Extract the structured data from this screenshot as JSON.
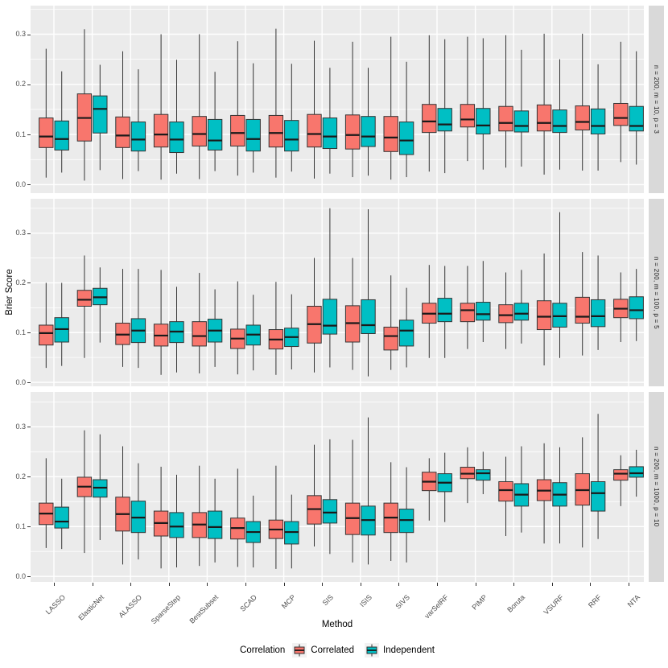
{
  "figure": {
    "background": "#FFFFFF",
    "panel_bg": "#EBEBEB",
    "strip_bg": "#D9D9D9",
    "grid_color": "#FFFFFF",
    "box_stroke": "#333333",
    "axis_text_color": "#4D4D4D"
  },
  "axes": {
    "x_title": "Method",
    "y_title": "Brier Score",
    "y_tick_labels": [
      "0.0",
      "0.1",
      "0.2",
      "0.3"
    ],
    "y_tick_values": [
      0,
      0.1,
      0.2,
      0.3
    ],
    "y_minor_values": [
      0.05,
      0.15,
      0.25,
      0.35
    ]
  },
  "legend": {
    "title": "Correlation",
    "entries": [
      {
        "label": "Correlated",
        "color": "#F8766D"
      },
      {
        "label": "Independent",
        "color": "#00BFC4"
      }
    ]
  },
  "chart_data": {
    "type": "boxplot",
    "layout_hint": "three vertically stacked facets, grouped dodged boxplots, gray panels with white gridlines, facet strips on right",
    "categories": [
      "LASSO",
      "ElasticNet",
      "ALASSO",
      "SparseStep",
      "BestSubset",
      "SCAD",
      "MCP",
      "SIS",
      "ISIS",
      "SIVS",
      "varSelRF",
      "PIMP",
      "Boruta",
      "VSURF",
      "RRF",
      "NTA"
    ],
    "series_names": [
      "Correlated",
      "Independent"
    ],
    "series_colors": {
      "Correlated": "#F8766D",
      "Independent": "#00BFC4"
    },
    "box_format": [
      "whisker_low",
      "q1",
      "median",
      "q3",
      "whisker_high"
    ],
    "panels": [
      {
        "strip_label": "n = 200, m = 10, p = 3",
        "ylim": [
          -0.017,
          0.357
        ],
        "series": [
          {
            "name": "Correlated",
            "boxes": [
              [
                0.014,
                0.074,
                0.096,
                0.133,
                0.271
              ],
              [
                0.008,
                0.087,
                0.133,
                0.181,
                0.31
              ],
              [
                0.011,
                0.074,
                0.098,
                0.135,
                0.266
              ],
              [
                0.01,
                0.075,
                0.1,
                0.14,
                0.3
              ],
              [
                0.011,
                0.077,
                0.101,
                0.136,
                0.3
              ],
              [
                0.018,
                0.077,
                0.103,
                0.138,
                0.286
              ],
              [
                0.014,
                0.075,
                0.103,
                0.138,
                0.311
              ],
              [
                0.012,
                0.075,
                0.101,
                0.14,
                0.287
              ],
              [
                0.015,
                0.071,
                0.099,
                0.139,
                0.285
              ],
              [
                0.01,
                0.066,
                0.094,
                0.136,
                0.295
              ],
              [
                0.026,
                0.104,
                0.126,
                0.16,
                0.298
              ],
              [
                0.047,
                0.115,
                0.13,
                0.16,
                0.295
              ],
              [
                0.034,
                0.107,
                0.123,
                0.156,
                0.298
              ],
              [
                0.02,
                0.107,
                0.123,
                0.159,
                0.301
              ],
              [
                0.028,
                0.109,
                0.125,
                0.157,
                0.301
              ],
              [
                0.045,
                0.118,
                0.133,
                0.162,
                0.285
              ]
            ]
          },
          {
            "name": "Independent",
            "boxes": [
              [
                0.024,
                0.069,
                0.091,
                0.127,
                0.226
              ],
              [
                0.029,
                0.103,
                0.151,
                0.177,
                0.239
              ],
              [
                0.027,
                0.067,
                0.09,
                0.125,
                0.23
              ],
              [
                0.022,
                0.064,
                0.09,
                0.125,
                0.249
              ],
              [
                0.027,
                0.069,
                0.088,
                0.13,
                0.225
              ],
              [
                0.024,
                0.067,
                0.091,
                0.13,
                0.242
              ],
              [
                0.026,
                0.067,
                0.09,
                0.128,
                0.241
              ],
              [
                0.022,
                0.072,
                0.096,
                0.133,
                0.233
              ],
              [
                0.018,
                0.076,
                0.096,
                0.136,
                0.233
              ],
              [
                0.015,
                0.06,
                0.088,
                0.125,
                0.245
              ],
              [
                0.023,
                0.107,
                0.12,
                0.152,
                0.29
              ],
              [
                0.03,
                0.101,
                0.118,
                0.152,
                0.292
              ],
              [
                0.036,
                0.105,
                0.117,
                0.147,
                0.269
              ],
              [
                0.03,
                0.104,
                0.117,
                0.149,
                0.25
              ],
              [
                0.028,
                0.101,
                0.117,
                0.151,
                0.24
              ],
              [
                0.04,
                0.107,
                0.117,
                0.156,
                0.266
              ]
            ]
          }
        ]
      },
      {
        "strip_label": "n = 200, m = 100, p = 5",
        "ylim": [
          -0.008,
          0.369
        ],
        "series": [
          {
            "name": "Correlated",
            "boxes": [
              [
                0.029,
                0.075,
                0.099,
                0.115,
                0.2
              ],
              [
                0.049,
                0.153,
                0.166,
                0.185,
                0.255
              ],
              [
                0.031,
                0.076,
                0.096,
                0.119,
                0.228
              ],
              [
                0.015,
                0.073,
                0.094,
                0.117,
                0.226
              ],
              [
                0.018,
                0.073,
                0.093,
                0.122,
                0.22
              ],
              [
                0.016,
                0.068,
                0.088,
                0.107,
                0.203
              ],
              [
                0.015,
                0.067,
                0.086,
                0.106,
                0.202
              ],
              [
                0.02,
                0.079,
                0.117,
                0.153,
                0.25
              ],
              [
                0.025,
                0.081,
                0.119,
                0.154,
                0.25
              ],
              [
                0.025,
                0.065,
                0.093,
                0.111,
                0.215
              ],
              [
                0.049,
                0.119,
                0.138,
                0.159,
                0.236
              ],
              [
                0.067,
                0.122,
                0.145,
                0.159,
                0.234
              ],
              [
                0.067,
                0.12,
                0.135,
                0.156,
                0.221
              ],
              [
                0.034,
                0.106,
                0.132,
                0.164,
                0.259
              ],
              [
                0.054,
                0.119,
                0.132,
                0.171,
                0.262
              ],
              [
                0.081,
                0.13,
                0.148,
                0.167,
                0.221
              ]
            ]
          },
          {
            "name": "Independent",
            "boxes": [
              [
                0.033,
                0.081,
                0.107,
                0.13,
                0.2
              ],
              [
                0.08,
                0.156,
                0.171,
                0.189,
                0.231
              ],
              [
                0.029,
                0.08,
                0.104,
                0.128,
                0.228
              ],
              [
                0.02,
                0.08,
                0.102,
                0.122,
                0.192
              ],
              [
                0.031,
                0.081,
                0.104,
                0.127,
                0.187
              ],
              [
                0.024,
                0.075,
                0.096,
                0.115,
                0.176
              ],
              [
                0.026,
                0.072,
                0.091,
                0.109,
                0.177
              ],
              [
                0.03,
                0.097,
                0.114,
                0.167,
                0.35
              ],
              [
                0.012,
                0.098,
                0.115,
                0.166,
                0.348
              ],
              [
                0.03,
                0.073,
                0.104,
                0.125,
                0.19
              ],
              [
                0.049,
                0.122,
                0.138,
                0.169,
                0.234
              ],
              [
                0.081,
                0.125,
                0.137,
                0.161,
                0.244
              ],
              [
                0.078,
                0.125,
                0.138,
                0.159,
                0.226
              ],
              [
                0.049,
                0.111,
                0.133,
                0.159,
                0.342
              ],
              [
                0.065,
                0.112,
                0.133,
                0.166,
                0.255
              ],
              [
                0.083,
                0.128,
                0.145,
                0.172,
                0.228
              ]
            ]
          }
        ]
      },
      {
        "strip_label": "n = 200, m = 1000, p = 10",
        "ylim": [
          -0.011,
          0.37
        ],
        "series": [
          {
            "name": "Correlated",
            "boxes": [
              [
                0.057,
                0.104,
                0.126,
                0.147,
                0.237
              ],
              [
                0.047,
                0.16,
                0.18,
                0.199,
                0.293
              ],
              [
                0.024,
                0.091,
                0.125,
                0.159,
                0.261
              ],
              [
                0.016,
                0.081,
                0.107,
                0.131,
                0.22
              ],
              [
                0.021,
                0.078,
                0.104,
                0.128,
                0.222
              ],
              [
                0.019,
                0.075,
                0.097,
                0.117,
                0.216
              ],
              [
                0.015,
                0.076,
                0.094,
                0.113,
                0.222
              ],
              [
                0.06,
                0.105,
                0.135,
                0.162,
                0.264
              ],
              [
                0.028,
                0.084,
                0.117,
                0.147,
                0.274
              ],
              [
                0.031,
                0.088,
                0.118,
                0.147,
                0.229
              ],
              [
                0.112,
                0.172,
                0.19,
                0.209,
                0.237
              ],
              [
                0.147,
                0.196,
                0.206,
                0.219,
                0.259
              ],
              [
                0.081,
                0.151,
                0.173,
                0.19,
                0.24
              ],
              [
                0.066,
                0.152,
                0.172,
                0.194,
                0.267
              ],
              [
                0.058,
                0.143,
                0.173,
                0.206,
                0.279
              ],
              [
                0.141,
                0.193,
                0.206,
                0.214,
                0.243
              ]
            ]
          },
          {
            "name": "Independent",
            "boxes": [
              [
                0.055,
                0.097,
                0.11,
                0.139,
                0.196
              ],
              [
                0.073,
                0.159,
                0.178,
                0.194,
                0.285
              ],
              [
                0.034,
                0.088,
                0.118,
                0.151,
                0.227
              ],
              [
                0.018,
                0.078,
                0.1,
                0.128,
                0.204
              ],
              [
                0.028,
                0.076,
                0.099,
                0.131,
                0.196
              ],
              [
                0.018,
                0.068,
                0.089,
                0.11,
                0.162
              ],
              [
                0.016,
                0.065,
                0.089,
                0.11,
                0.164
              ],
              [
                0.045,
                0.107,
                0.128,
                0.154,
                0.275
              ],
              [
                0.024,
                0.083,
                0.113,
                0.141,
                0.319
              ],
              [
                0.028,
                0.088,
                0.113,
                0.135,
                0.219
              ],
              [
                0.109,
                0.17,
                0.188,
                0.206,
                0.248
              ],
              [
                0.165,
                0.193,
                0.207,
                0.214,
                0.25
              ],
              [
                0.088,
                0.141,
                0.164,
                0.186,
                0.261
              ],
              [
                0.066,
                0.141,
                0.164,
                0.188,
                0.259
              ],
              [
                0.075,
                0.131,
                0.167,
                0.19,
                0.326
              ],
              [
                0.16,
                0.199,
                0.207,
                0.22,
                0.254
              ]
            ]
          }
        ]
      }
    ]
  }
}
